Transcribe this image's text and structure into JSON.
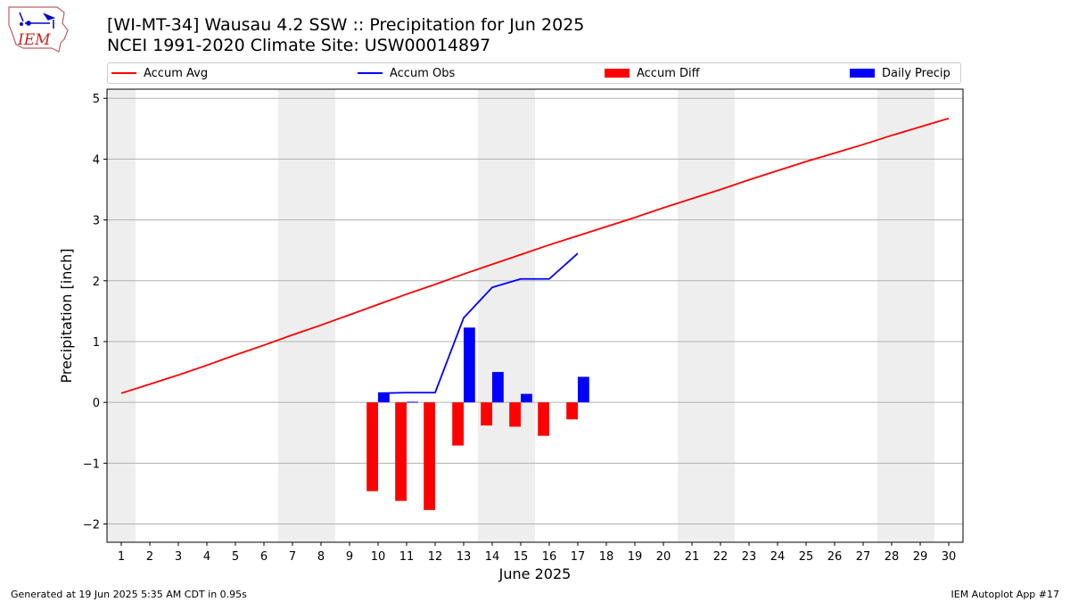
{
  "header": {
    "title_line1": "[WI-MT-34] Wausau 4.2 SSW :: Precipitation for Jun 2025",
    "title_line2": "NCEI 1991-2020 Climate Site: USW00014897",
    "logo_text": "IEM"
  },
  "footer": {
    "generated": "Generated at 19 Jun 2025 5:35 AM CDT in 0.95s",
    "app": "IEM Autoplot App #17"
  },
  "colors": {
    "accum_avg": "#ff0000",
    "accum_obs": "#0000ff",
    "accum_diff": "#ff0000",
    "daily_precip": "#0000ff",
    "weekend_band": "#eeeeee",
    "grid": "#b0b0b0"
  },
  "chart_data": {
    "type": "bar",
    "xlabel": "June 2025",
    "ylabel": "Precipitation [inch]",
    "xlim": [
      0.5,
      30.5
    ],
    "ylim": [
      -2.3,
      5.15
    ],
    "x_ticks": [
      1,
      2,
      3,
      4,
      5,
      6,
      7,
      8,
      9,
      10,
      11,
      12,
      13,
      14,
      15,
      16,
      17,
      18,
      19,
      20,
      21,
      22,
      23,
      24,
      25,
      26,
      27,
      28,
      29,
      30
    ],
    "x_tick_labels": [
      "1",
      "2",
      "3",
      "4",
      "5",
      "6",
      "7",
      "8",
      "9",
      "10",
      "11",
      "12",
      "13",
      "14",
      "15",
      "16",
      "17",
      "18",
      "19",
      "20",
      "21",
      "22",
      "23",
      "24",
      "25",
      "26",
      "27",
      "28",
      "29",
      "30"
    ],
    "y_ticks": [
      -2,
      -1,
      0,
      1,
      2,
      3,
      4,
      5
    ],
    "y_tick_labels": [
      "−2",
      "−1",
      "0",
      "1",
      "2",
      "3",
      "4",
      "5"
    ],
    "grid": "horizontal",
    "legend_placement": "top",
    "weekend_days": [
      1,
      7,
      8,
      14,
      15,
      21,
      22,
      28,
      29
    ],
    "series": [
      {
        "name": "Accum Avg",
        "kind": "line",
        "color": "#ff0000",
        "x": [
          1,
          2,
          3,
          4,
          5,
          6,
          7,
          8,
          9,
          10,
          11,
          12,
          13,
          14,
          15,
          16,
          17,
          18,
          19,
          20,
          21,
          22,
          23,
          24,
          25,
          26,
          27,
          28,
          29,
          30
        ],
        "values": [
          0.15,
          0.3,
          0.45,
          0.61,
          0.78,
          0.94,
          1.11,
          1.27,
          1.44,
          1.61,
          1.78,
          1.94,
          2.11,
          2.27,
          2.43,
          2.59,
          2.74,
          2.89,
          3.04,
          3.2,
          3.35,
          3.5,
          3.66,
          3.81,
          3.96,
          4.1,
          4.24,
          4.39,
          4.53,
          4.67
        ]
      },
      {
        "name": "Accum Obs",
        "kind": "line",
        "color": "#0000ff",
        "x": [
          10,
          11,
          12,
          13,
          14,
          15,
          16,
          17
        ],
        "values": [
          0.15,
          0.16,
          0.16,
          1.39,
          1.89,
          2.03,
          2.03,
          2.45
        ]
      },
      {
        "name": "Accum Diff",
        "kind": "bar",
        "color": "#ff0000",
        "offset": -0.2,
        "x": [
          10,
          11,
          12,
          13,
          14,
          15,
          16,
          17
        ],
        "values": [
          -1.46,
          -1.62,
          -1.77,
          -0.71,
          -0.38,
          -0.4,
          -0.55,
          -0.28
        ]
      },
      {
        "name": "Daily Precip",
        "kind": "bar",
        "color": "#0000ff",
        "offset": 0.2,
        "x": [
          10,
          11,
          12,
          13,
          14,
          15,
          16,
          17
        ],
        "values": [
          0.15,
          0.01,
          0.0,
          1.23,
          0.5,
          0.14,
          0.0,
          0.42
        ]
      }
    ]
  }
}
